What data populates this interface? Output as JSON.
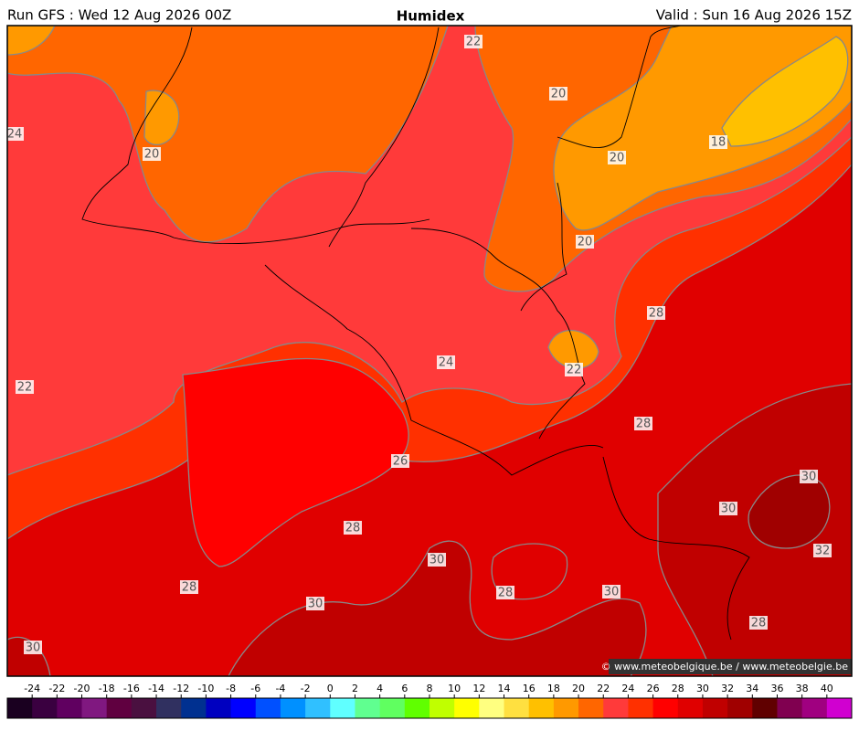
{
  "header": {
    "left": "Run GFS : Wed 12 Aug 2026 00Z",
    "title": "Humidex",
    "right": "Valid : Sun 16 Aug 2026 15Z"
  },
  "contour_labels": [
    22,
    20,
    24,
    20,
    18,
    20,
    20,
    28,
    22,
    24,
    22,
    28,
    26,
    30,
    30,
    28,
    30,
    32,
    28,
    28,
    30,
    30,
    28,
    30
  ],
  "copyright": "© www.meteobelgique.be / www.meteobelgie.be",
  "colorbar": {
    "labels": [
      -24,
      -22,
      -20,
      -18,
      -16,
      -14,
      -12,
      -10,
      -8,
      -6,
      -4,
      -2,
      0,
      2,
      4,
      6,
      8,
      10,
      12,
      14,
      16,
      18,
      20,
      22,
      24,
      26,
      28,
      30,
      32,
      34,
      36,
      38,
      40
    ],
    "colors": [
      "#1a0020",
      "#3a0040",
      "#600060",
      "#801880",
      "#600040",
      "#4a1040",
      "#303060",
      "#003090",
      "#0000c0",
      "#0000ff",
      "#0050ff",
      "#0090ff",
      "#30c0ff",
      "#60ffff",
      "#60ff90",
      "#60ff60",
      "#60ff00",
      "#c0ff00",
      "#ffff00",
      "#ffff80",
      "#ffe040",
      "#ffc000",
      "#ff9900",
      "#ff6600",
      "#ff3a3a",
      "#ff3000",
      "#ff0000",
      "#e00000",
      "#c00000",
      "#a00000",
      "#600000",
      "#800050",
      "#a00080",
      "#d000d0"
    ]
  }
}
